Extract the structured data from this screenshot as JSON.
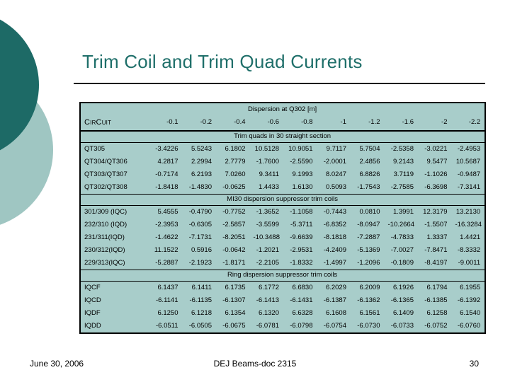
{
  "slide": {
    "title": "Trim Coil and Trim Quad Currents",
    "footer": {
      "date": "June 30, 2006",
      "doc": "DEJ Beams-doc 2315",
      "page": "30"
    },
    "colors": {
      "title_text": "#1f6f6a",
      "circle_dark": "#1d6a66",
      "circle_light": "#9fc6c2",
      "table_bg": "#a8cdca",
      "table_border": "#000000"
    }
  },
  "table": {
    "title": "Dispersion at Q302 [m]",
    "row_header": "CirCuit",
    "columns": [
      "-0.1",
      "-0.2",
      "-0.4",
      "-0.6",
      "-0.8",
      "-1",
      "-1.2",
      "-1.6",
      "-2",
      "-2.2"
    ],
    "sections": [
      {
        "header": "Trim quads in 30 straight section",
        "rows": [
          {
            "label": "QT305",
            "values": [
              "-3.4226",
              "5.5243",
              "6.1802",
              "10.5128",
              "10.9051",
              "9.7117",
              "5.7504",
              "-2.5358",
              "-3.0221",
              "-2.4953"
            ]
          },
          {
            "label": "QT304/QT306",
            "values": [
              "4.2817",
              "2.2994",
              "2.7779",
              "-1.7600",
              "-2.5590",
              "-2.0001",
              "2.4856",
              "9.2143",
              "9.5477",
              "10.5687"
            ]
          },
          {
            "label": "QT303/QT307",
            "values": [
              "-0.7174",
              "6.2193",
              "7.0260",
              "9.3411",
              "9.1993",
              "8.0247",
              "6.8826",
              "3.7119",
              "-1.1026",
              "-0.9487"
            ]
          },
          {
            "label": "QT302/QT308",
            "values": [
              "-1.8418",
              "-1.4830",
              "-0.0625",
              "1.4433",
              "1.6130",
              "0.5093",
              "-1.7543",
              "-2.7585",
              "-6.3698",
              "-7.3141"
            ]
          }
        ]
      },
      {
        "header": "MI30 dispersion suppressor trim coils",
        "rows": [
          {
            "label": "301/309 (IQC)",
            "values": [
              "5.4555",
              "-0.4790",
              "-0.7752",
              "-1.3652",
              "-1.1058",
              "-0.7443",
              "0.0810",
              "1.3991",
              "12.3179",
              "13.2130"
            ]
          },
          {
            "label": "232/310 (IQD)",
            "values": [
              "-2.3953",
              "-0.6305",
              "-2.5857",
              "-3.5599",
              "-5.3711",
              "-6.8352",
              "-8.0947",
              "-10.2664",
              "-1.5507",
              "-16.3284"
            ]
          },
          {
            "label": "231/311(IQD)",
            "values": [
              "-1.4622",
              "-7.1731",
              "-8.2051",
              "-10.3488",
              "-9.6639",
              "-8.1818",
              "-7.2887",
              "-4.7833",
              "1.3337",
              "1.4421"
            ]
          },
          {
            "label": "230/312(IQD)",
            "values": [
              "11.1522",
              "0.5916",
              "-0.0642",
              "-1.2021",
              "-2.9531",
              "-4.2409",
              "-5.1369",
              "-7.0027",
              "-7.8471",
              "-8.3332"
            ]
          },
          {
            "label": "229/313(IQC)",
            "values": [
              "-5.2887",
              "-2.1923",
              "-1.8171",
              "-2.2105",
              "-1.8332",
              "-1.4997",
              "-1.2096",
              "-0.1809",
              "-8.4197",
              "-9.0011"
            ]
          }
        ]
      },
      {
        "header": "Ring dispersion suppressor trim coils",
        "rows": [
          {
            "label": "IQCF",
            "values": [
              "6.1437",
              "6.1411",
              "6.1735",
              "6.1772",
              "6.6830",
              "6.2029",
              "6.2009",
              "6.1926",
              "6.1794",
              "6.1955"
            ]
          },
          {
            "label": "IQCD",
            "values": [
              "-6.1141",
              "-6.1135",
              "-6.1307",
              "-6.1413",
              "-6.1431",
              "-6.1387",
              "-6.1362",
              "-6.1365",
              "-6.1385",
              "-6.1392"
            ]
          },
          {
            "label": "IQDF",
            "values": [
              "6.1250",
              "6.1218",
              "6.1354",
              "6.1320",
              "6.6328",
              "6.1608",
              "6.1561",
              "6.1409",
              "6.1258",
              "6.1540"
            ]
          },
          {
            "label": "IQDD",
            "values": [
              "-6.0511",
              "-6.0505",
              "-6.0675",
              "-6.0781",
              "-6.0798",
              "-6.0754",
              "-6.0730",
              "-6.0733",
              "-6.0752",
              "-6.0760"
            ]
          }
        ]
      }
    ]
  }
}
